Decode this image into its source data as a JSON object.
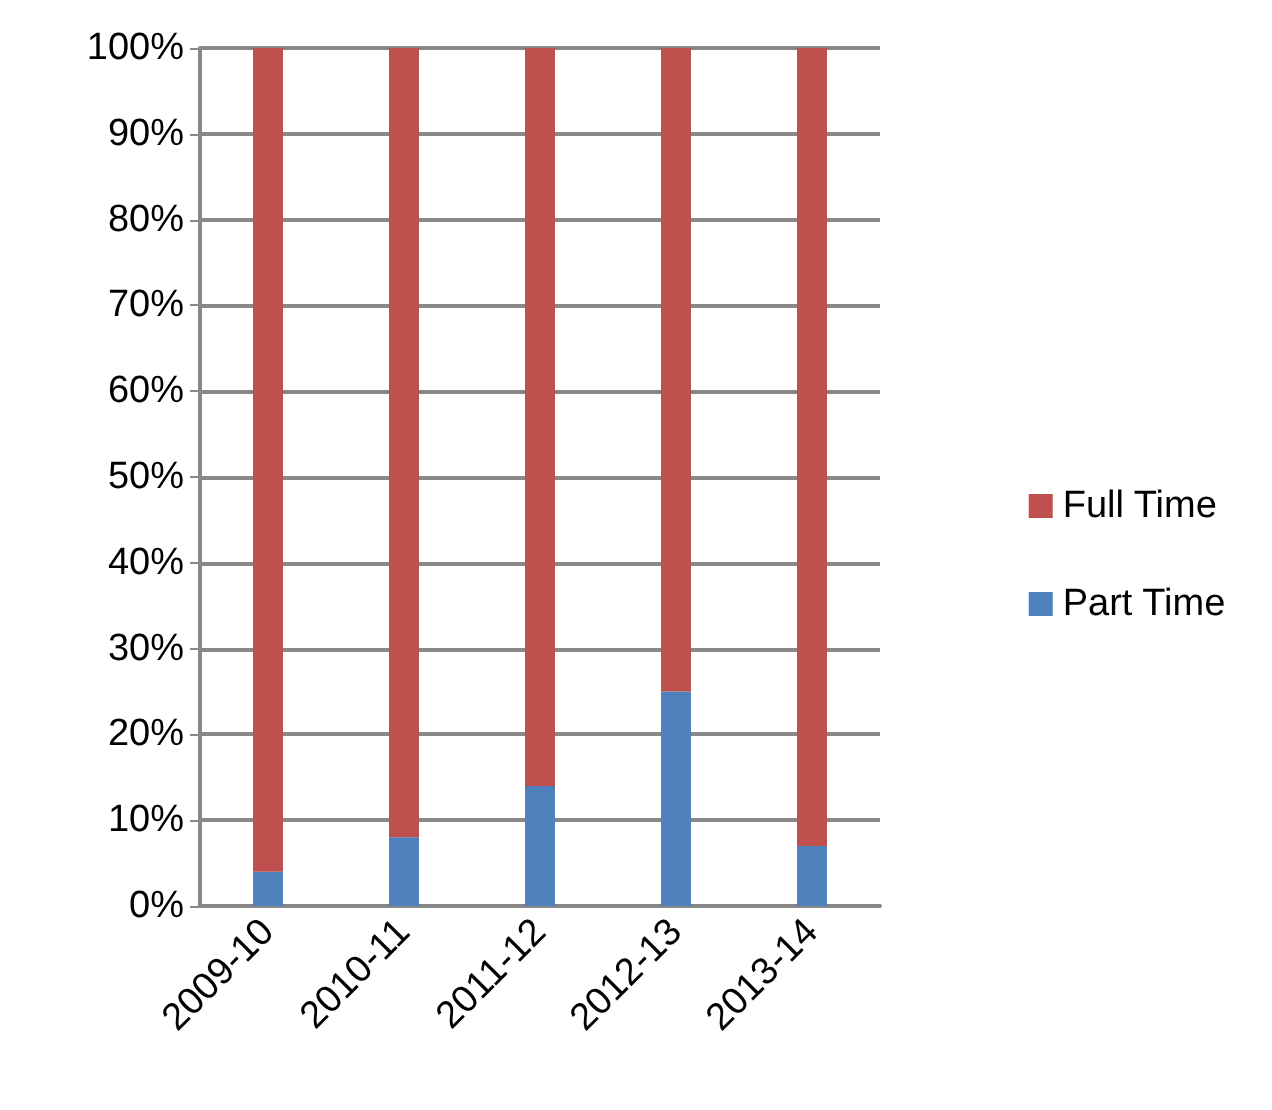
{
  "chart_data": {
    "type": "bar",
    "stacked": true,
    "categories": [
      "2009-10",
      "2010-11",
      "2011-12",
      "2012-13",
      "2013-14"
    ],
    "series": [
      {
        "name": "Part Time",
        "color": "#4f81bd",
        "values": [
          4,
          8,
          14,
          25,
          7
        ]
      },
      {
        "name": "Full Time",
        "color": "#c0504d",
        "values": [
          96,
          92,
          86,
          75,
          93
        ]
      }
    ],
    "ylim": [
      0,
      100
    ],
    "yticks": [
      {
        "value": 0,
        "label": "0%"
      },
      {
        "value": 10,
        "label": "10%"
      },
      {
        "value": 20,
        "label": "20%"
      },
      {
        "value": 30,
        "label": "30%"
      },
      {
        "value": 40,
        "label": "40%"
      },
      {
        "value": 50,
        "label": "50%"
      },
      {
        "value": 60,
        "label": "60%"
      },
      {
        "value": 70,
        "label": "70%"
      },
      {
        "value": 80,
        "label": "80%"
      },
      {
        "value": 90,
        "label": "90%"
      },
      {
        "value": 100,
        "label": "100%"
      }
    ],
    "grid": "y",
    "legend": "right"
  }
}
